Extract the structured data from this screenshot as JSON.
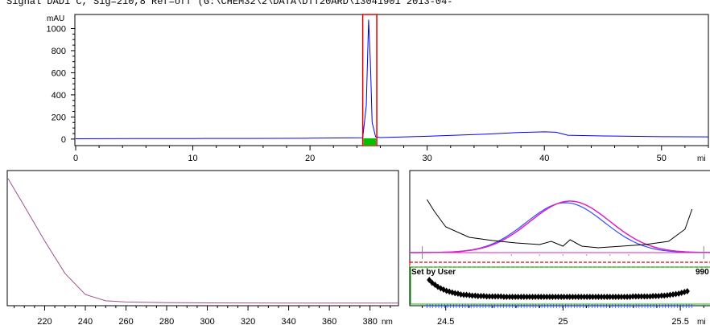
{
  "header": {
    "signal_title": "Signal DAD1 C, Sig=210,8 Ref=off (G:\\CHEM32\\2\\DATA\\DTT20ARD\\13041901 2013-04-"
  },
  "colors": {
    "trace_blue": "#0000ff",
    "peak_box_red": "#e00000",
    "peak_marker_green": "#00c000",
    "spectrum_purple": "#a0508c",
    "overlay_magenta": "#e020c0",
    "purity_black": "#000000"
  },
  "chart_data": [
    {
      "type": "line",
      "ylabel": "mAU",
      "xlabel": "mi",
      "xlim": [
        0,
        54
      ],
      "ylim": [
        -30,
        1120
      ],
      "x_ticks": [
        0,
        10,
        20,
        30,
        40,
        50
      ],
      "y_ticks": [
        0,
        200,
        400,
        600,
        800,
        1000
      ],
      "series": [
        {
          "x": [
            0,
            5,
            10,
            15,
            20,
            24.5,
            24.8,
            25.0,
            25.15,
            25.3,
            25.6,
            26,
            30,
            35,
            38,
            40,
            41,
            42,
            45,
            50,
            54
          ],
          "y": [
            3,
            4,
            5,
            6,
            8,
            12,
            300,
            1080,
            700,
            150,
            20,
            14,
            25,
            45,
            60,
            65,
            62,
            35,
            28,
            22,
            20
          ]
        }
      ],
      "peak_window": [
        24.5,
        25.7
      ]
    },
    {
      "type": "line",
      "xlabel": "nm",
      "xlim": [
        202,
        394
      ],
      "x_ticks": [
        220,
        240,
        260,
        280,
        300,
        320,
        340,
        360,
        380
      ],
      "series": [
        {
          "x": [
            202,
            210,
            220,
            230,
            240,
            250,
            260,
            280,
            300,
            340,
            394
          ],
          "y": [
            1.0,
            0.78,
            0.5,
            0.24,
            0.07,
            0.02,
            0.01,
            0.005,
            0.003,
            0.002,
            0.002
          ]
        }
      ]
    },
    {
      "type": "line",
      "xlabel": "mi",
      "xlim": [
        24.35,
        25.63
      ],
      "x_ticks": [
        24.5,
        25,
        25.5
      ],
      "x_tick_labels": [
        "24.5",
        "25",
        "25.5"
      ],
      "threshold_label": "Set by User",
      "threshold_value_partial": "990"
    }
  ]
}
